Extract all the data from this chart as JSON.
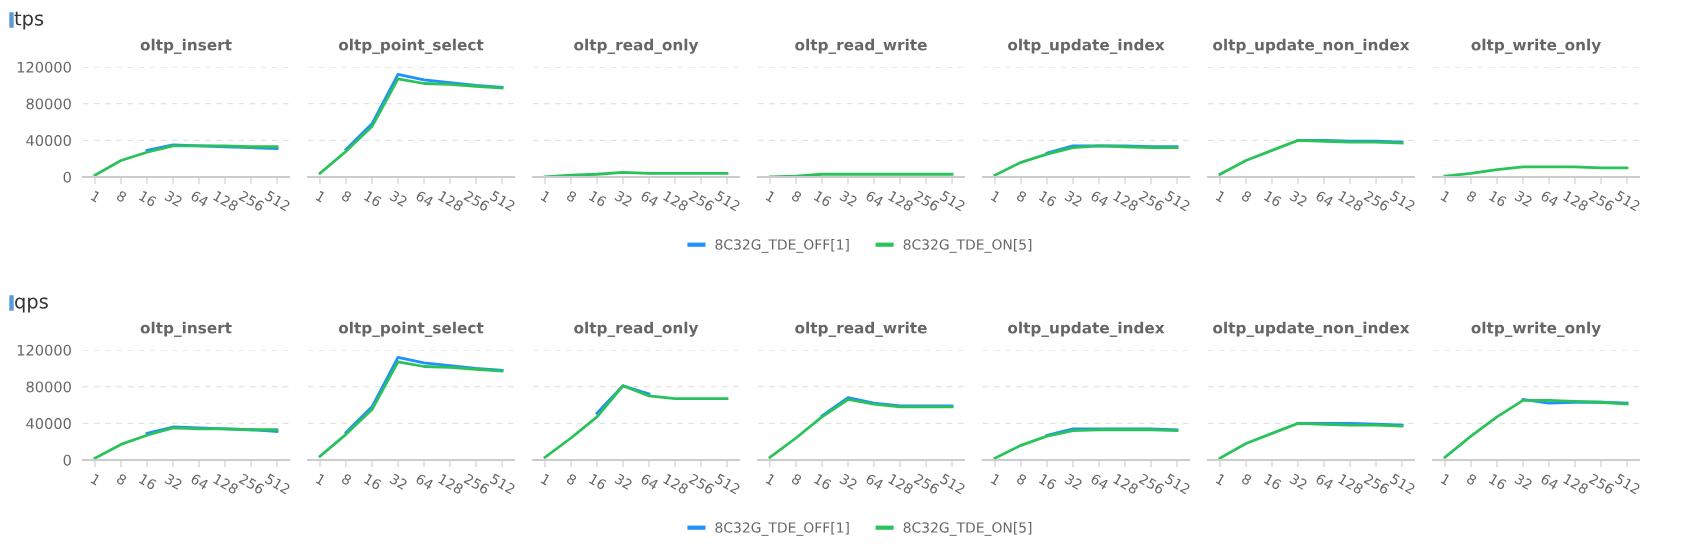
{
  "chart_data": [
    {
      "type": "line",
      "title": "oltp_insert",
      "annotations": [
        "tps"
      ],
      "categories": [
        "1",
        "8",
        "16",
        "32",
        "64",
        "128",
        "256",
        "512"
      ],
      "ylim": [
        0,
        120000
      ],
      "yticks": [
        0,
        40000,
        80000,
        120000
      ],
      "grid": "y",
      "series": [
        {
          "color": "#1e90ff",
          "values": [
            null,
            null,
            29000,
            35000,
            34000,
            33000,
            32000,
            31000
          ]
        },
        {
          "color": "#2cc25b",
          "values": [
            2000,
            18000,
            27000,
            34000,
            34000,
            34000,
            33000,
            33000
          ]
        }
      ]
    },
    {
      "type": "line",
      "title": "oltp_point_select",
      "tick_labels": "x",
      "categories": [
        "1",
        "8",
        "16",
        "32",
        "64",
        "128",
        "256",
        "512"
      ],
      "ylim": [
        0,
        120000
      ],
      "yticks": [
        0,
        40000,
        80000,
        120000
      ],
      "grid": "y",
      "series": [
        {
          "color": "#1e90ff",
          "values": [
            null,
            30000,
            58000,
            112000,
            106000,
            103000,
            100000,
            98000
          ]
        },
        {
          "color": "#2cc25b",
          "values": [
            4000,
            28000,
            55000,
            107000,
            102000,
            101000,
            99000,
            97000
          ]
        }
      ]
    },
    {
      "type": "line",
      "title": "oltp_read_only",
      "tick_labels": "x",
      "categories": [
        "1",
        "8",
        "16",
        "32",
        "64",
        "128",
        "256",
        "512"
      ],
      "ylim": [
        0,
        120000
      ],
      "yticks": [
        0,
        40000,
        80000,
        120000
      ],
      "grid": "y",
      "series": [
        {
          "color": "#1e90ff",
          "values": [
            null,
            null,
            null,
            null,
            null,
            null,
            null,
            null
          ]
        },
        {
          "color": "#2cc25b",
          "values": [
            0,
            2000,
            3000,
            5000,
            4000,
            4000,
            4000,
            4000
          ]
        }
      ]
    },
    {
      "type": "line",
      "title": "oltp_read_write",
      "tick_labels": "x",
      "legend": "bottom",
      "categories": [
        "1",
        "8",
        "16",
        "32",
        "64",
        "128",
        "256",
        "512"
      ],
      "ylim": [
        0,
        120000
      ],
      "yticks": [
        0,
        40000,
        80000,
        120000
      ],
      "grid": "y",
      "series": [
        {
          "name": "8C32G_TDE_OFF[1]",
          "color": "#1e90ff",
          "values": [
            null,
            null,
            null,
            null,
            null,
            null,
            null,
            null
          ]
        },
        {
          "name": "8C32G_TDE_ON[5]",
          "color": "#2cc25b",
          "values": [
            0,
            1000,
            3000,
            3000,
            3000,
            3000,
            3000,
            3000
          ]
        }
      ]
    },
    {
      "type": "line",
      "title": "oltp_update_index",
      "tick_labels": "x",
      "categories": [
        "1",
        "8",
        "16",
        "32",
        "64",
        "128",
        "256",
        "512"
      ],
      "ylim": [
        0,
        120000
      ],
      "yticks": [
        0,
        40000,
        80000,
        120000
      ],
      "grid": "y",
      "series": [
        {
          "color": "#1e90ff",
          "values": [
            null,
            null,
            26000,
            34000,
            34000,
            34000,
            33000,
            33000
          ]
        },
        {
          "color": "#2cc25b",
          "values": [
            2000,
            16000,
            25000,
            32000,
            34000,
            33000,
            32000,
            32000
          ]
        }
      ]
    },
    {
      "type": "line",
      "title": "oltp_update_non_index",
      "tick_labels": "x",
      "categories": [
        "1",
        "8",
        "16",
        "32",
        "64",
        "128",
        "256",
        "512"
      ],
      "ylim": [
        0,
        120000
      ],
      "yticks": [
        0,
        40000,
        80000,
        120000
      ],
      "grid": "y",
      "series": [
        {
          "color": "#1e90ff",
          "values": [
            null,
            null,
            null,
            40000,
            40000,
            39000,
            39000,
            38000
          ]
        },
        {
          "color": "#2cc25b",
          "values": [
            3000,
            18000,
            29000,
            40000,
            39000,
            38000,
            38000,
            37000
          ]
        }
      ]
    },
    {
      "type": "line",
      "title": "oltp_write_only",
      "tick_labels": "x",
      "categories": [
        "1",
        "8",
        "16",
        "32",
        "64",
        "128",
        "256",
        "512"
      ],
      "ylim": [
        0,
        120000
      ],
      "yticks": [
        0,
        40000,
        80000,
        120000
      ],
      "grid": "y",
      "series": [
        {
          "color": "#1e90ff",
          "values": [
            null,
            null,
            null,
            null,
            null,
            null,
            null,
            null
          ]
        },
        {
          "color": "#2cc25b",
          "values": [
            1000,
            4000,
            8000,
            11000,
            11000,
            11000,
            10000,
            10000
          ]
        }
      ]
    },
    {
      "type": "line",
      "title": "oltp_insert",
      "annotations": [
        "qps"
      ],
      "categories": [
        "1",
        "8",
        "16",
        "32",
        "64",
        "128",
        "256",
        "512"
      ],
      "ylim": [
        0,
        120000
      ],
      "yticks": [
        0,
        40000,
        80000,
        120000
      ],
      "grid": "y",
      "series": [
        {
          "color": "#1e90ff",
          "values": [
            null,
            null,
            29000,
            36000,
            35000,
            34000,
            33000,
            31000
          ]
        },
        {
          "color": "#2cc25b",
          "values": [
            2000,
            17000,
            27000,
            35000,
            34000,
            34000,
            33000,
            33000
          ]
        }
      ]
    },
    {
      "type": "line",
      "title": "oltp_point_select",
      "tick_labels": "x",
      "categories": [
        "1",
        "8",
        "16",
        "32",
        "64",
        "128",
        "256",
        "512"
      ],
      "ylim": [
        0,
        120000
      ],
      "yticks": [
        0,
        40000,
        80000,
        120000
      ],
      "grid": "y",
      "series": [
        {
          "color": "#1e90ff",
          "values": [
            null,
            30000,
            58000,
            112000,
            106000,
            103000,
            100000,
            98000
          ]
        },
        {
          "color": "#2cc25b",
          "values": [
            4000,
            28000,
            55000,
            107000,
            102000,
            101000,
            99000,
            97000
          ]
        }
      ]
    },
    {
      "type": "line",
      "title": "oltp_read_only",
      "tick_labels": "x",
      "categories": [
        "1",
        "8",
        "16",
        "32",
        "64",
        "128",
        "256",
        "512"
      ],
      "ylim": [
        0,
        120000
      ],
      "yticks": [
        0,
        40000,
        80000,
        120000
      ],
      "grid": "y",
      "series": [
        {
          "color": "#1e90ff",
          "values": [
            null,
            null,
            51000,
            81000,
            72000,
            null,
            null,
            null
          ]
        },
        {
          "color": "#2cc25b",
          "values": [
            3000,
            24000,
            47000,
            81000,
            70000,
            67000,
            67000,
            67000
          ]
        }
      ]
    },
    {
      "type": "line",
      "title": "oltp_read_write",
      "tick_labels": "x",
      "legend": "bottom",
      "categories": [
        "1",
        "8",
        "16",
        "32",
        "64",
        "128",
        "256",
        "512"
      ],
      "ylim": [
        0,
        120000
      ],
      "yticks": [
        0,
        40000,
        80000,
        120000
      ],
      "grid": "y",
      "series": [
        {
          "name": "8C32G_TDE_OFF[1]",
          "color": "#1e90ff",
          "values": [
            null,
            null,
            48000,
            68000,
            62000,
            59000,
            59000,
            59000
          ]
        },
        {
          "name": "8C32G_TDE_ON[5]",
          "color": "#2cc25b",
          "values": [
            3000,
            24000,
            47000,
            66000,
            61000,
            58000,
            58000,
            58000
          ]
        }
      ]
    },
    {
      "type": "line",
      "title": "oltp_update_index",
      "tick_labels": "x",
      "categories": [
        "1",
        "8",
        "16",
        "32",
        "64",
        "128",
        "256",
        "512"
      ],
      "ylim": [
        0,
        120000
      ],
      "yticks": [
        0,
        40000,
        80000,
        120000
      ],
      "grid": "y",
      "series": [
        {
          "color": "#1e90ff",
          "values": [
            null,
            null,
            27000,
            34000,
            34000,
            34000,
            34000,
            33000
          ]
        },
        {
          "color": "#2cc25b",
          "values": [
            2000,
            16000,
            26000,
            32000,
            33000,
            33000,
            33000,
            32000
          ]
        }
      ]
    },
    {
      "type": "line",
      "title": "oltp_update_non_index",
      "tick_labels": "x",
      "categories": [
        "1",
        "8",
        "16",
        "32",
        "64",
        "128",
        "256",
        "512"
      ],
      "ylim": [
        0,
        120000
      ],
      "yticks": [
        0,
        40000,
        80000,
        120000
      ],
      "grid": "y",
      "series": [
        {
          "color": "#1e90ff",
          "values": [
            null,
            null,
            null,
            40000,
            40000,
            40000,
            39000,
            38000
          ]
        },
        {
          "color": "#2cc25b",
          "values": [
            2000,
            18000,
            29000,
            40000,
            39000,
            38000,
            38000,
            37000
          ]
        }
      ]
    },
    {
      "type": "line",
      "title": "oltp_write_only",
      "tick_labels": "x",
      "categories": [
        "1",
        "8",
        "16",
        "32",
        "64",
        "128",
        "256",
        "512"
      ],
      "ylim": [
        0,
        120000
      ],
      "yticks": [
        0,
        40000,
        80000,
        120000
      ],
      "grid": "y",
      "series": [
        {
          "color": "#1e90ff",
          "values": [
            null,
            null,
            null,
            66000,
            62000,
            63000,
            63000,
            62000
          ]
        },
        {
          "color": "#2cc25b",
          "values": [
            3000,
            26000,
            47000,
            65000,
            65000,
            64000,
            63000,
            61000
          ]
        }
      ]
    }
  ]
}
